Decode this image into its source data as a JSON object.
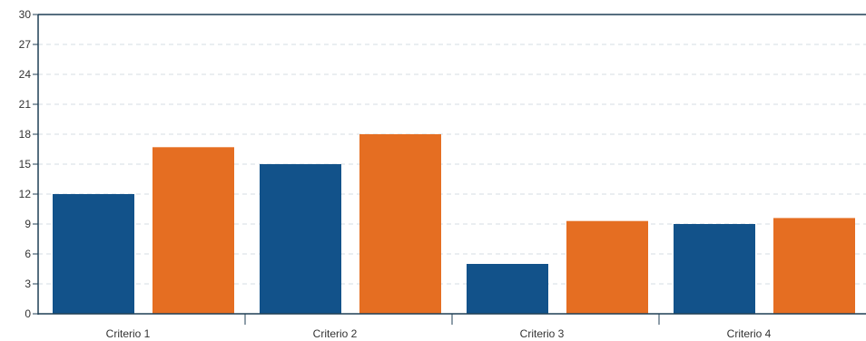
{
  "chart_data": {
    "type": "bar",
    "categories": [
      "Criterio 1",
      "Criterio 2",
      "Criterio 3",
      "Criterio 4"
    ],
    "series": [
      {
        "color": "#12528a",
        "values": [
          12,
          15,
          5,
          9
        ]
      },
      {
        "color": "#e56e22",
        "values": [
          16.7,
          18,
          9.3,
          9.6
        ]
      }
    ],
    "ylim": [
      0,
      30
    ],
    "yticks": [
      0,
      3,
      6,
      9,
      12,
      15,
      18,
      21,
      24,
      27,
      30
    ],
    "grid": true,
    "legend": "none",
    "title": "",
    "xlabel": "",
    "ylabel": ""
  }
}
